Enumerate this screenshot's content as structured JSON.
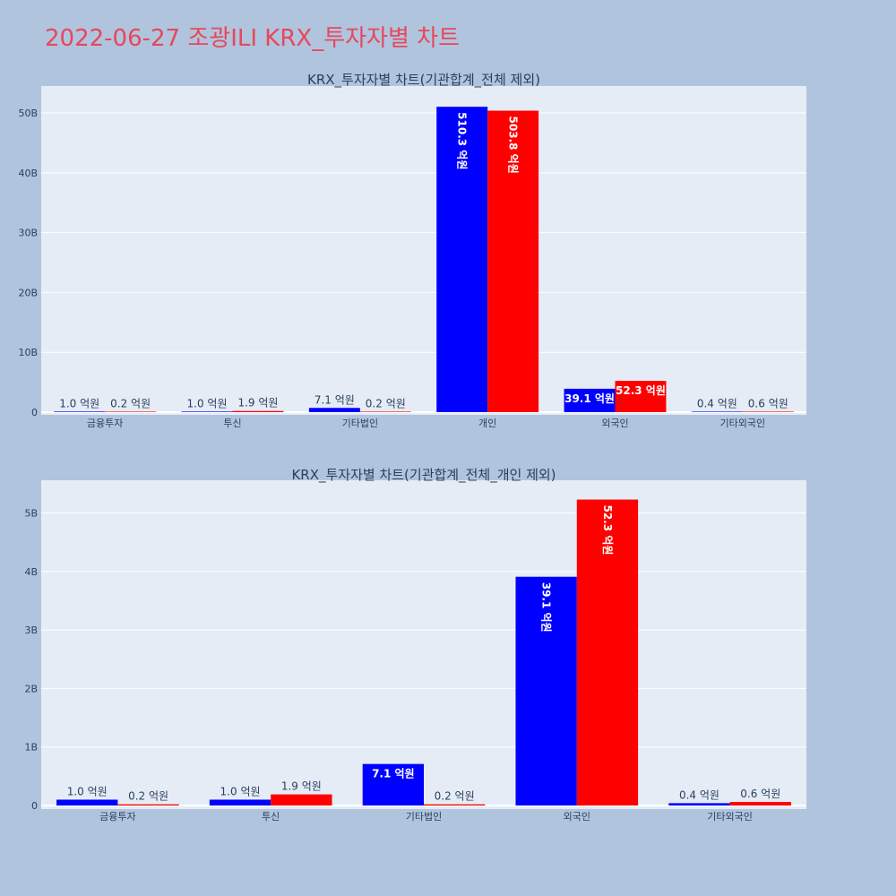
{
  "page": {
    "title": "2022-06-27 조광ILI KRX_투자자별 차트"
  },
  "colors": {
    "page_bg": "#b0c4de",
    "plot_bg": "#e5ecf6",
    "title": "#e8475a",
    "text": "#2a3f5f",
    "gridline": "#ffffff",
    "series_a": "#0000ff",
    "series_b": "#ff0000"
  },
  "chart_data": [
    {
      "type": "bar",
      "title": "KRX_투자자별 차트(기관합계_전체 제외)",
      "categories": [
        "금융투자",
        "투신",
        "기타법인",
        "개인",
        "외국인",
        "기타외국인"
      ],
      "series": [
        {
          "color": "#0000ff",
          "values": [
            100000000,
            100000000,
            710000000,
            51030000000,
            3910000000,
            40000000
          ],
          "labels": [
            "1.0 억원",
            "1.0 억원",
            "7.1 억원",
            "510.3 억원",
            "39.1 억원",
            "0.4 억원"
          ]
        },
        {
          "color": "#ff0000",
          "values": [
            20000000,
            190000000,
            20000000,
            50380000000,
            5230000000,
            60000000
          ],
          "labels": [
            "0.2 억원",
            "1.9 억원",
            "0.2 억원",
            "503.8 억원",
            "52.3 억원",
            "0.6 억원"
          ]
        }
      ],
      "ylim": [
        0,
        54500000000
      ],
      "yticks": [
        {
          "value": 0,
          "label": "0"
        },
        {
          "value": 10000000000,
          "label": "10B"
        },
        {
          "value": 20000000000,
          "label": "20B"
        },
        {
          "value": 30000000000,
          "label": "30B"
        },
        {
          "value": 40000000000,
          "label": "40B"
        },
        {
          "value": 50000000000,
          "label": "50B"
        }
      ],
      "grid": true,
      "xlabel": "",
      "ylabel": ""
    },
    {
      "type": "bar",
      "title": "KRX_투자자별 차트(기관합계_전체_개인 제외)",
      "categories": [
        "금융투자",
        "투신",
        "기타법인",
        "외국인",
        "기타외국인"
      ],
      "series": [
        {
          "color": "#0000ff",
          "values": [
            100000000,
            100000000,
            710000000,
            3910000000,
            40000000
          ],
          "labels": [
            "1.0 억원",
            "1.0 억원",
            "7.1 억원",
            "39.1 억원",
            "0.4 억원"
          ]
        },
        {
          "color": "#ff0000",
          "values": [
            20000000,
            190000000,
            20000000,
            5230000000,
            60000000
          ],
          "labels": [
            "0.2 억원",
            "1.9 억원",
            "0.2 억원",
            "52.3 억원",
            "0.6 억원"
          ]
        }
      ],
      "ylim": [
        0,
        5560000000
      ],
      "yticks": [
        {
          "value": 0,
          "label": "0"
        },
        {
          "value": 1000000000,
          "label": "1B"
        },
        {
          "value": 2000000000,
          "label": "2B"
        },
        {
          "value": 3000000000,
          "label": "3B"
        },
        {
          "value": 4000000000,
          "label": "4B"
        },
        {
          "value": 5000000000,
          "label": "5B"
        }
      ],
      "grid": true,
      "xlabel": "",
      "ylabel": ""
    }
  ]
}
